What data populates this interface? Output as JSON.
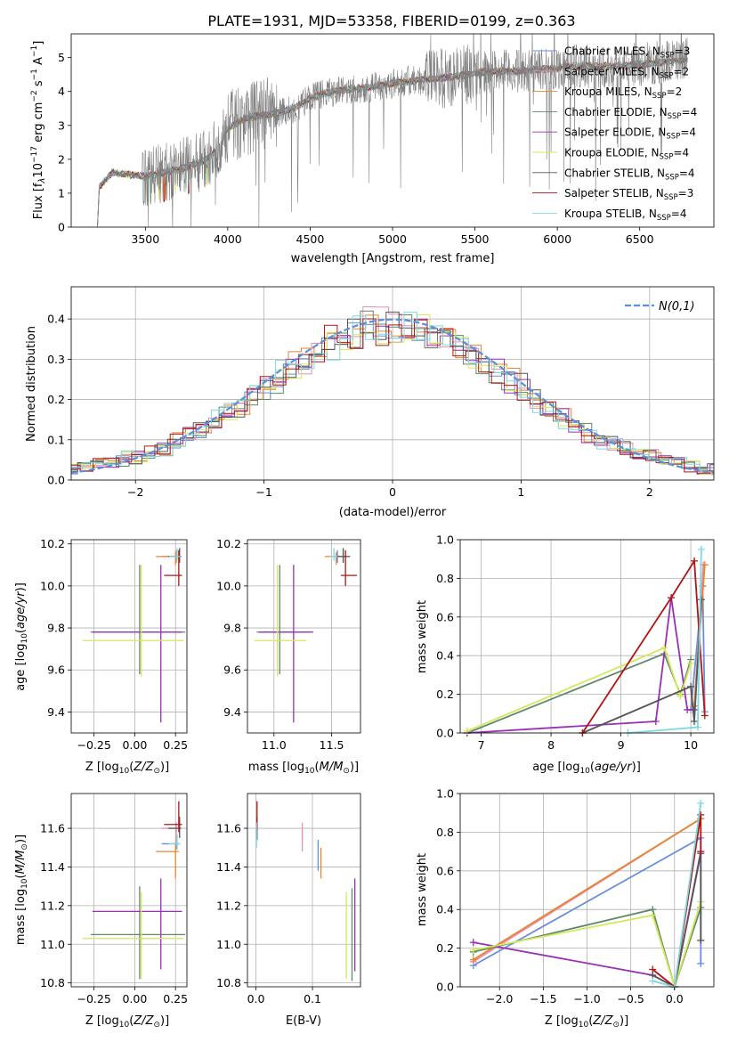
{
  "figure": {
    "title": "PLATE=1931, MJD=53358, FIBERID=0199, z=0.363"
  },
  "colors": {
    "Chabrier MILES": "#6a8fd8",
    "Salpeter MILES": "#e88fb0",
    "Kroupa MILES": "#e8852e",
    "Chabrier ELODIE": "#5f8a6a",
    "Salpeter ELODIE": "#9a2fb5",
    "Kroupa ELODIE": "#d4e85a",
    "Chabrier STELIB": "#555555",
    "Salpeter STELIB": "#b01515",
    "Kroupa STELIB": "#7fd8e0",
    "data": "#808080",
    "normal": "#5b8fd9"
  },
  "chart_data": [
    {
      "id": "spectrum",
      "type": "line",
      "xlabel": "wavelength [Angstrom, rest frame]",
      "ylabel": "Flux [f_λ 10^-17 erg cm^-2 s^-1 A^-1]",
      "xlim": [
        3050,
        6950
      ],
      "ylim": [
        0,
        5.7
      ],
      "xticks": [
        3500,
        4000,
        4500,
        5000,
        5500,
        6000,
        6500
      ],
      "yticks": [
        0,
        1,
        2,
        3,
        4,
        5
      ],
      "x_start": 3210,
      "x_end": 6790,
      "legend": "upper right",
      "legend_entries": [
        {
          "name": "Chabrier MILES",
          "nssp": "3"
        },
        {
          "name": "Salpeter MILES",
          "nssp": "2"
        },
        {
          "name": "Kroupa MILES",
          "nssp": "2"
        },
        {
          "name": "Chabrier ELODIE",
          "nssp": "4"
        },
        {
          "name": "Salpeter ELODIE",
          "nssp": "4"
        },
        {
          "name": "Kroupa ELODIE",
          "nssp": "4"
        },
        {
          "name": "Chabrier STELIB",
          "nssp": "4"
        },
        {
          "name": "Salpeter STELIB",
          "nssp": "3"
        },
        {
          "name": "Kroupa STELIB",
          "nssp": "4"
        }
      ],
      "continuum_knots": [
        [
          3210,
          0.05
        ],
        [
          3220,
          1.2
        ],
        [
          3300,
          1.6
        ],
        [
          3400,
          1.55
        ],
        [
          3500,
          1.5
        ],
        [
          3600,
          1.6
        ],
        [
          3700,
          1.7
        ],
        [
          3800,
          1.85
        ],
        [
          3900,
          2.1
        ],
        [
          3950,
          2.5
        ],
        [
          4000,
          2.9
        ],
        [
          4100,
          3.2
        ],
        [
          4200,
          3.3
        ],
        [
          4300,
          3.35
        ],
        [
          4400,
          3.5
        ],
        [
          4500,
          3.8
        ],
        [
          4600,
          3.95
        ],
        [
          4700,
          4.05
        ],
        [
          4800,
          4.1
        ],
        [
          4900,
          4.15
        ],
        [
          5000,
          4.25
        ],
        [
          5100,
          4.3
        ],
        [
          5200,
          4.35
        ],
        [
          5300,
          4.4
        ],
        [
          5400,
          4.45
        ],
        [
          5500,
          4.55
        ],
        [
          5600,
          4.6
        ],
        [
          5700,
          4.6
        ],
        [
          5800,
          4.6
        ],
        [
          5900,
          4.65
        ],
        [
          6000,
          4.7
        ],
        [
          6100,
          4.75
        ],
        [
          6200,
          4.75
        ],
        [
          6300,
          4.75
        ],
        [
          6400,
          4.75
        ],
        [
          6500,
          4.8
        ],
        [
          6600,
          4.85
        ],
        [
          6700,
          4.9
        ],
        [
          6790,
          4.95
        ]
      ]
    },
    {
      "id": "residuals",
      "type": "histogram",
      "xlabel": "(data-model)/error",
      "ylabel": "Normed distribution",
      "xlim": [
        -2.5,
        2.5
      ],
      "ylim": [
        0,
        0.48
      ],
      "xticks": [
        -2,
        -1,
        0,
        1,
        2
      ],
      "yticks": [
        0.0,
        0.1,
        0.2,
        0.3,
        0.4
      ],
      "legend_label": "N(0,1)",
      "legend": "upper right",
      "bin_width": 0.1
    },
    {
      "id": "age_vs_Z",
      "type": "errorbar",
      "xlabel": "Z [log10(Z/Z⊙)]",
      "ylabel": "age  [log10(age/yr)]",
      "xlim": [
        -0.39,
        0.32
      ],
      "ylim": [
        9.3,
        10.22
      ],
      "xticks": [
        -0.25,
        0.0,
        0.25
      ],
      "yticks": [
        9.4,
        9.6,
        9.8,
        10.0,
        10.2
      ],
      "points": [
        {
          "model": "Chabrier MILES",
          "x": 0.255,
          "xerr": [
            0.09,
            0.02
          ],
          "y": 10.14,
          "yerr": [
            0.03,
            0.03
          ]
        },
        {
          "model": "Salpeter MILES",
          "x": 0.255,
          "xerr": [
            0.09,
            0.02
          ],
          "y": 10.14,
          "yerr": [
            0.03,
            0.03
          ]
        },
        {
          "model": "Kroupa MILES",
          "x": 0.25,
          "xerr": [
            0.12,
            0.02
          ],
          "y": 10.14,
          "yerr": [
            0.04,
            0.02
          ]
        },
        {
          "model": "Chabrier ELODIE",
          "x": 0.03,
          "xerr": [
            0.3,
            0.28
          ],
          "y": 9.78,
          "yerr": [
            0.2,
            0.32
          ]
        },
        {
          "model": "Salpeter ELODIE",
          "x": 0.16,
          "xerr": [
            0.42,
            0.13
          ],
          "y": 9.78,
          "yerr": [
            0.43,
            0.32
          ]
        },
        {
          "model": "Kroupa ELODIE",
          "x": 0.04,
          "xerr": [
            0.36,
            0.26
          ],
          "y": 9.74,
          "yerr": [
            0.17,
            0.36
          ]
        },
        {
          "model": "Chabrier STELIB",
          "x": 0.275,
          "xerr": [
            0.07,
            0.01
          ],
          "y": 10.14,
          "yerr": [
            0.03,
            0.04
          ]
        },
        {
          "model": "Salpeter STELIB",
          "x": 0.27,
          "xerr": [
            0.09,
            0.02
          ],
          "y": 10.05,
          "yerr": [
            0.05,
            0.12
          ]
        },
        {
          "model": "Kroupa STELIB",
          "x": 0.26,
          "xerr": [
            0.05,
            0.02
          ],
          "y": 10.14,
          "yerr": [
            0.02,
            0.04
          ]
        }
      ]
    },
    {
      "id": "age_vs_mass",
      "type": "errorbar",
      "xlabel": "mass [log10(M/M⊙)]",
      "ylabel": "",
      "xlim": [
        10.77,
        11.75
      ],
      "ylim": [
        9.3,
        10.22
      ],
      "xticks": [
        11.0,
        11.5
      ],
      "yticks": [
        9.4,
        9.6,
        9.8,
        10.0,
        10.2
      ],
      "points": [
        {
          "model": "Chabrier MILES",
          "x": 11.55,
          "xerr": [
            0.04,
            0.03
          ],
          "y": 10.14,
          "yerr": [
            0.03,
            0.03
          ]
        },
        {
          "model": "Salpeter MILES",
          "x": 11.6,
          "xerr": [
            0.08,
            0.03
          ],
          "y": 10.14,
          "yerr": [
            0.03,
            0.03
          ]
        },
        {
          "model": "Kroupa MILES",
          "x": 11.54,
          "xerr": [
            0.1,
            0.04
          ],
          "y": 10.14,
          "yerr": [
            0.04,
            0.02
          ]
        },
        {
          "model": "Chabrier ELODIE",
          "x": 11.05,
          "xerr": [
            0.2,
            0.27
          ],
          "y": 9.78,
          "yerr": [
            0.2,
            0.32
          ]
        },
        {
          "model": "Salpeter ELODIE",
          "x": 11.17,
          "xerr": [
            0.3,
            0.17
          ],
          "y": 9.78,
          "yerr": [
            0.43,
            0.32
          ]
        },
        {
          "model": "Kroupa ELODIE",
          "x": 11.03,
          "xerr": [
            0.2,
            0.25
          ],
          "y": 9.74,
          "yerr": [
            0.17,
            0.36
          ]
        },
        {
          "model": "Chabrier STELIB",
          "x": 11.6,
          "xerr": [
            0.05,
            0.06
          ],
          "y": 10.14,
          "yerr": [
            0.03,
            0.04
          ]
        },
        {
          "model": "Salpeter STELIB",
          "x": 11.62,
          "xerr": [
            0.04,
            0.1
          ],
          "y": 10.05,
          "yerr": [
            0.05,
            0.12
          ]
        },
        {
          "model": "Kroupa STELIB",
          "x": 11.52,
          "xerr": [
            0.03,
            0.03
          ],
          "y": 10.14,
          "yerr": [
            0.02,
            0.04
          ]
        }
      ]
    },
    {
      "id": "massweight_vs_age",
      "type": "line",
      "xlabel": "age  [log10(age/yr)]",
      "ylabel": "mass weight",
      "xlim": [
        6.7,
        10.33
      ],
      "ylim": [
        0,
        1.0
      ],
      "xticks": [
        7,
        8,
        9,
        10
      ],
      "yticks": [
        0.0,
        0.2,
        0.4,
        0.6,
        0.8,
        1.0
      ],
      "series": [
        {
          "model": "Chabrier MILES",
          "x": [
            10.0,
            10.17,
            10.2
          ],
          "y": [
            0.12,
            0.76,
            0.11
          ]
        },
        {
          "model": "Salpeter MILES",
          "x": [
            10.05,
            10.18
          ],
          "y": [
            0.14,
            0.87
          ]
        },
        {
          "model": "Kroupa MILES",
          "x": [
            10.05,
            10.2
          ],
          "y": [
            0.14,
            0.87
          ]
        },
        {
          "model": "Chabrier ELODIE",
          "x": [
            6.8,
            9.62,
            9.85,
            10.0
          ],
          "y": [
            0.0,
            0.41,
            0.2,
            0.38
          ]
        },
        {
          "model": "Salpeter ELODIE",
          "x": [
            6.8,
            9.5,
            9.72,
            9.95,
            10.05
          ],
          "y": [
            0.0,
            0.06,
            0.7,
            0.12,
            0.12
          ]
        },
        {
          "model": "Kroupa ELODIE",
          "x": [
            6.8,
            9.62,
            9.85,
            10.0
          ],
          "y": [
            0.01,
            0.44,
            0.19,
            0.36
          ]
        },
        {
          "model": "Chabrier STELIB",
          "x": [
            8.45,
            10.0,
            10.05,
            10.15
          ],
          "y": [
            0.0,
            0.24,
            0.06,
            0.69
          ]
        },
        {
          "model": "Salpeter STELIB",
          "x": [
            8.45,
            9.72,
            10.05,
            10.2
          ],
          "y": [
            0.0,
            0.7,
            0.89,
            0.09
          ]
        },
        {
          "model": "Kroupa STELIB",
          "x": [
            9.1,
            10.1,
            10.15
          ],
          "y": [
            0.0,
            0.03,
            0.95
          ]
        }
      ]
    },
    {
      "id": "mass_vs_Z",
      "type": "errorbar",
      "xlabel": "Z [log10(Z/Z⊙)]",
      "ylabel": "mass [log10(M/M⊙)]",
      "xlim": [
        -0.39,
        0.32
      ],
      "ylim": [
        10.78,
        11.78
      ],
      "xticks": [
        -0.25,
        0.0,
        0.25
      ],
      "yticks": [
        10.8,
        11.0,
        11.2,
        11.4,
        11.6
      ],
      "points": [
        {
          "model": "Chabrier MILES",
          "x": 0.255,
          "xerr": [
            0.09,
            0.02
          ],
          "y": 11.52,
          "yerr": [
            0.03,
            0.03
          ]
        },
        {
          "model": "Salpeter MILES",
          "x": 0.255,
          "xerr": [
            0.09,
            0.02
          ],
          "y": 11.6,
          "yerr": [
            0.08,
            0.03
          ]
        },
        {
          "model": "Kroupa MILES",
          "x": 0.25,
          "xerr": [
            0.12,
            0.02
          ],
          "y": 11.48,
          "yerr": [
            0.14,
            0.04
          ]
        },
        {
          "model": "Chabrier ELODIE",
          "x": 0.03,
          "xerr": [
            0.3,
            0.28
          ],
          "y": 11.05,
          "yerr": [
            0.23,
            0.25
          ]
        },
        {
          "model": "Salpeter ELODIE",
          "x": 0.16,
          "xerr": [
            0.42,
            0.13
          ],
          "y": 11.17,
          "yerr": [
            0.3,
            0.17
          ]
        },
        {
          "model": "Kroupa ELODIE",
          "x": 0.04,
          "xerr": [
            0.36,
            0.26
          ],
          "y": 11.03,
          "yerr": [
            0.21,
            0.24
          ]
        },
        {
          "model": "Chabrier STELIB",
          "x": 0.275,
          "xerr": [
            0.07,
            0.01
          ],
          "y": 11.6,
          "yerr": [
            0.05,
            0.06
          ]
        },
        {
          "model": "Salpeter STELIB",
          "x": 0.27,
          "xerr": [
            0.09,
            0.02
          ],
          "y": 11.62,
          "yerr": [
            0.04,
            0.12
          ]
        },
        {
          "model": "Kroupa STELIB",
          "x": 0.26,
          "xerr": [
            0.05,
            0.02
          ],
          "y": 11.52,
          "yerr": [
            0.03,
            0.05
          ]
        }
      ]
    },
    {
      "id": "mass_vs_EBV",
      "type": "errorbar",
      "xlabel": "E(B-V)",
      "ylabel": "",
      "xlim": [
        -0.015,
        0.185
      ],
      "ylim": [
        10.78,
        11.78
      ],
      "xticks": [
        0.0,
        0.1
      ],
      "yticks": [
        10.8,
        11.0,
        11.2,
        11.4,
        11.6
      ],
      "points": [
        {
          "model": "Chabrier MILES",
          "x": 0.11,
          "y": 11.47,
          "yerr": [
            0.09,
            0.07
          ]
        },
        {
          "model": "Salpeter MILES",
          "x": 0.082,
          "y": 11.55,
          "yerr": [
            0.07,
            0.08
          ]
        },
        {
          "model": "Kroupa MILES",
          "x": 0.115,
          "y": 11.43,
          "yerr": [
            0.09,
            0.07
          ]
        },
        {
          "model": "Chabrier ELODIE",
          "x": 0.17,
          "y": 11.05,
          "yerr": [
            0.24,
            0.24
          ]
        },
        {
          "model": "Salpeter ELODIE",
          "x": 0.175,
          "y": 11.1,
          "yerr": [
            0.24,
            0.24
          ]
        },
        {
          "model": "Kroupa ELODIE",
          "x": 0.16,
          "y": 11.04,
          "yerr": [
            0.22,
            0.23
          ]
        },
        {
          "model": "Chabrier STELIB",
          "x": 0.002,
          "y": 11.6,
          "yerr": [
            0.06,
            0.06
          ]
        },
        {
          "model": "Salpeter STELIB",
          "x": 0.002,
          "y": 11.64,
          "yerr": [
            0.05,
            0.1
          ]
        },
        {
          "model": "Kroupa STELIB",
          "x": 0.001,
          "y": 11.56,
          "yerr": [
            0.06,
            0.07
          ]
        }
      ]
    },
    {
      "id": "massweight_vs_Z",
      "type": "line",
      "xlabel": "Z [log10(Z/Z⊙)]",
      "ylabel": "mass weight",
      "xlim": [
        -2.45,
        0.45
      ],
      "ylim": [
        0,
        1.0
      ],
      "xticks": [
        -2.0,
        -1.5,
        -1.0,
        -0.5,
        0.0
      ],
      "yticks": [
        0.0,
        0.2,
        0.4,
        0.6,
        0.8,
        1.0
      ],
      "series": [
        {
          "model": "Chabrier MILES",
          "x": [
            -2.3,
            0.3,
            0.3
          ],
          "y": [
            0.11,
            0.77,
            0.12
          ]
        },
        {
          "model": "Salpeter MILES",
          "x": [
            -2.3,
            0.3
          ],
          "y": [
            0.13,
            0.87
          ]
        },
        {
          "model": "Kroupa MILES",
          "x": [
            -2.3,
            0.3
          ],
          "y": [
            0.14,
            0.87
          ]
        },
        {
          "model": "Chabrier ELODIE",
          "x": [
            -2.3,
            -0.25,
            0.0,
            0.3
          ],
          "y": [
            0.18,
            0.4,
            0.0,
            0.41
          ]
        },
        {
          "model": "Salpeter ELODIE",
          "x": [
            -2.3,
            -0.25,
            0.0,
            0.3
          ],
          "y": [
            0.23,
            0.06,
            0.0,
            0.7
          ]
        },
        {
          "model": "Kroupa ELODIE",
          "x": [
            -2.3,
            -0.25,
            0.0,
            0.3
          ],
          "y": [
            0.19,
            0.37,
            0.0,
            0.44
          ]
        },
        {
          "model": "Chabrier STELIB",
          "x": [
            -0.25,
            0.0,
            0.3,
            0.3
          ],
          "y": [
            0.06,
            0.0,
            0.69,
            0.24
          ]
        },
        {
          "model": "Salpeter STELIB",
          "x": [
            -0.25,
            0.0,
            0.3,
            0.3
          ],
          "y": [
            0.09,
            0.0,
            0.89,
            0.7
          ]
        },
        {
          "model": "Kroupa STELIB",
          "x": [
            -0.25,
            0.0,
            0.3
          ],
          "y": [
            0.03,
            0.0,
            0.95
          ]
        }
      ]
    }
  ]
}
